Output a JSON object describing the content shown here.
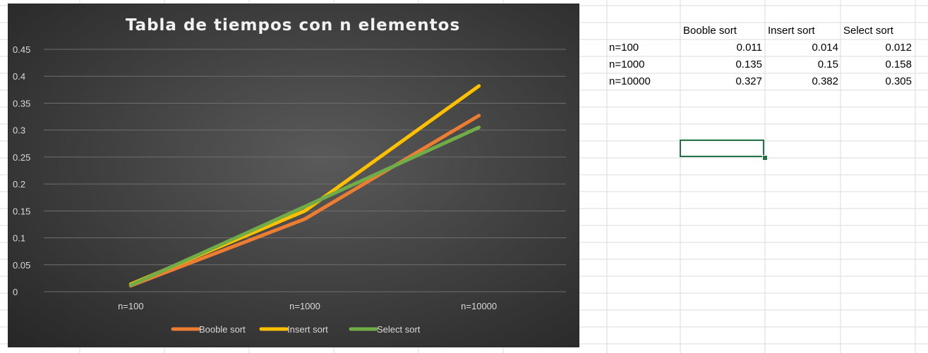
{
  "chart_data": {
    "type": "line",
    "title": "Tabla de tiempos con n elementos",
    "categories": [
      "n=100",
      "n=1000",
      "n=10000"
    ],
    "ylim": [
      0,
      0.45
    ],
    "yticks": [
      "0",
      "0.05",
      "0.1",
      "0.15",
      "0.2",
      "0.25",
      "0.3",
      "0.35",
      "0.4",
      "0.45"
    ],
    "grid": true,
    "legend_position": "bottom",
    "series": [
      {
        "name": "Booble sort",
        "values": [
          0.011,
          0.135,
          0.327
        ],
        "color": "#ed7d31"
      },
      {
        "name": "Insert sort",
        "values": [
          0.014,
          0.15,
          0.382
        ],
        "color": "#ffc000"
      },
      {
        "name": "Select sort",
        "values": [
          0.012,
          0.158,
          0.305
        ],
        "color": "#70ad47"
      }
    ]
  },
  "sheet": {
    "headers": [
      "Booble sort",
      "Insert sort",
      "Select sort"
    ],
    "rows": [
      {
        "label": "n=100",
        "values": [
          "0.011",
          "0.014",
          "0.012"
        ]
      },
      {
        "label": "n=1000",
        "values": [
          "0.135",
          "0.15",
          "0.158"
        ]
      },
      {
        "label": "n=10000",
        "values": [
          "0.327",
          "0.382",
          "0.305"
        ]
      }
    ]
  }
}
